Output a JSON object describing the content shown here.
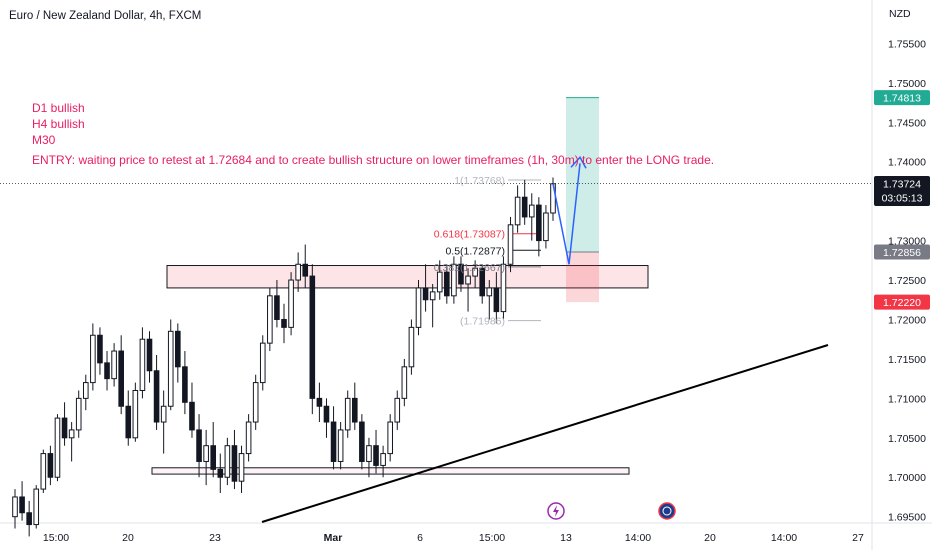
{
  "chart_data": {
    "type": "candlestick",
    "title": "Euro / New Zealand Dollar, 4h, FXCM",
    "currency": "NZD",
    "y_axis": {
      "min": 1.6942,
      "max": 1.7605,
      "ticks": [
        "1.75500",
        "1.75000",
        "1.74500",
        "1.74000",
        "1.73500",
        "1.73000",
        "1.72500",
        "1.72000",
        "1.71500",
        "1.71000",
        "1.70500",
        "1.70000",
        "1.69500"
      ]
    },
    "x_axis": {
      "ticks": [
        "15:00",
        "20",
        "23",
        "Mar",
        "6",
        "15:00",
        "13",
        "14:00",
        "20",
        "14:00",
        "27"
      ],
      "bold_ticks": [
        "Mar"
      ]
    },
    "price_labels": [
      {
        "value": 1.74813,
        "text": "1.74813",
        "color": "#22ab94"
      },
      {
        "value": 1.73724,
        "text": "1.73724",
        "sub": "03:05:13",
        "color": "#131722"
      },
      {
        "value": 1.72856,
        "text": "1.72856",
        "color": "#787b86"
      },
      {
        "value": 1.7222,
        "text": "1.72220",
        "color": "#f23645"
      }
    ],
    "current_price": 1.73724,
    "annotation_lines": [
      "D1 bullish",
      "H4 bullish",
      "M30",
      "ENTRY: waiting price to retest at 1.72684 and to create bullish structure on lower timeframes (1h, 30m) to enter the LONG trade."
    ],
    "annotation_color": "#e91e63",
    "fib_levels": [
      {
        "ratio": "1",
        "value": 1.73768,
        "text": "1(1.73768)",
        "color": "#b2b5be"
      },
      {
        "ratio": "0.618",
        "value": 1.73087,
        "text": "0.618(1.73087)",
        "color": "#f23645"
      },
      {
        "ratio": "0.5",
        "value": 1.72877,
        "text": "0.5(1.72877)",
        "color": "#131722"
      },
      {
        "ratio": "0.382",
        "value": 1.72667,
        "text": "0.382(1.72667)",
        "color": "#787b86"
      },
      {
        "ratio": "0",
        "value": 1.71986,
        "text": "(1.71986)",
        "color": "#b2b5be"
      }
    ],
    "zones": [
      {
        "name": "resistance-support-zone",
        "y_top": 1.72684,
        "y_bottom": 1.724
      },
      {
        "name": "demand-zone",
        "y_top": 1.7012,
        "y_bottom": 1.7004
      }
    ],
    "long_position": {
      "entry": 1.72856,
      "target": 1.74813,
      "stop": 1.7222
    },
    "candles": [
      [
        1.695,
        1.6985,
        1.6935,
        1.6975
      ],
      [
        1.6975,
        1.6995,
        1.6945,
        1.6955
      ],
      [
        1.6955,
        1.697,
        1.6925,
        1.694
      ],
      [
        1.694,
        1.699,
        1.6935,
        1.6985
      ],
      [
        1.6985,
        1.7035,
        1.698,
        1.703
      ],
      [
        1.703,
        1.704,
        1.699,
        1.7
      ],
      [
        1.7,
        1.708,
        1.6995,
        1.7075
      ],
      [
        1.7075,
        1.7095,
        1.704,
        1.705
      ],
      [
        1.705,
        1.707,
        1.702,
        1.706
      ],
      [
        1.706,
        1.711,
        1.705,
        1.71
      ],
      [
        1.71,
        1.713,
        1.7085,
        1.712
      ],
      [
        1.712,
        1.7195,
        1.711,
        1.718
      ],
      [
        1.718,
        1.719,
        1.713,
        1.7145
      ],
      [
        1.7145,
        1.716,
        1.711,
        1.7125
      ],
      [
        1.7125,
        1.717,
        1.7115,
        1.716
      ],
      [
        1.716,
        1.718,
        1.708,
        1.709
      ],
      [
        1.709,
        1.711,
        1.704,
        1.705
      ],
      [
        1.705,
        1.712,
        1.7045,
        1.711
      ],
      [
        1.711,
        1.719,
        1.71,
        1.7175
      ],
      [
        1.7175,
        1.7185,
        1.712,
        1.7135
      ],
      [
        1.7135,
        1.7155,
        1.706,
        1.707
      ],
      [
        1.707,
        1.711,
        1.703,
        1.709
      ],
      [
        1.709,
        1.72,
        1.7085,
        1.7185
      ],
      [
        1.7185,
        1.7195,
        1.712,
        1.714
      ],
      [
        1.714,
        1.716,
        1.708,
        1.7095
      ],
      [
        1.7095,
        1.712,
        1.705,
        1.706
      ],
      [
        1.706,
        1.708,
        1.7,
        1.702
      ],
      [
        1.702,
        1.706,
        1.699,
        1.704
      ],
      [
        1.704,
        1.707,
        1.7,
        1.701
      ],
      [
        1.701,
        1.703,
        1.698,
        1.7
      ],
      [
        1.7,
        1.705,
        1.699,
        1.704
      ],
      [
        1.704,
        1.706,
        1.6985,
        1.6995
      ],
      [
        1.6995,
        1.704,
        1.698,
        1.703
      ],
      [
        1.703,
        1.708,
        1.702,
        1.707
      ],
      [
        1.707,
        1.713,
        1.706,
        1.712
      ],
      [
        1.712,
        1.718,
        1.711,
        1.717
      ],
      [
        1.717,
        1.724,
        1.716,
        1.723
      ],
      [
        1.723,
        1.725,
        1.719,
        1.72
      ],
      [
        1.72,
        1.722,
        1.717,
        1.719
      ],
      [
        1.719,
        1.726,
        1.718,
        1.725
      ],
      [
        1.725,
        1.7285,
        1.7235,
        1.727
      ],
      [
        1.727,
        1.7295,
        1.724,
        1.7255
      ],
      [
        1.7255,
        1.727,
        1.708,
        1.71
      ],
      [
        1.71,
        1.712,
        1.707,
        1.709
      ],
      [
        1.709,
        1.71,
        1.705,
        1.707
      ],
      [
        1.707,
        1.709,
        1.701,
        1.702
      ],
      [
        1.702,
        1.707,
        1.701,
        1.706
      ],
      [
        1.706,
        1.711,
        1.705,
        1.71
      ],
      [
        1.71,
        1.712,
        1.706,
        1.707
      ],
      [
        1.707,
        1.708,
        1.701,
        1.702
      ],
      [
        1.702,
        1.705,
        1.7,
        1.704
      ],
      [
        1.704,
        1.706,
        1.7005,
        1.7015
      ],
      [
        1.7015,
        1.704,
        1.7,
        1.703
      ],
      [
        1.703,
        1.708,
        1.702,
        1.707
      ],
      [
        1.707,
        1.711,
        1.706,
        1.71
      ],
      [
        1.71,
        1.715,
        1.709,
        1.714
      ],
      [
        1.714,
        1.72,
        1.713,
        1.719
      ],
      [
        1.719,
        1.725,
        1.718,
        1.724
      ],
      [
        1.724,
        1.727,
        1.721,
        1.7225
      ],
      [
        1.7225,
        1.7245,
        1.719,
        1.7235
      ],
      [
        1.7235,
        1.7275,
        1.7225,
        1.726
      ],
      [
        1.726,
        1.727,
        1.722,
        1.723
      ],
      [
        1.723,
        1.728,
        1.722,
        1.727
      ],
      [
        1.727,
        1.728,
        1.7235,
        1.7245
      ],
      [
        1.7245,
        1.7265,
        1.721,
        1.7255
      ],
      [
        1.7255,
        1.7275,
        1.724,
        1.7265
      ],
      [
        1.7265,
        1.727,
        1.722,
        1.723
      ],
      [
        1.723,
        1.725,
        1.72,
        1.724
      ],
      [
        1.724,
        1.726,
        1.7195,
        1.721
      ],
      [
        1.721,
        1.728,
        1.72,
        1.727
      ],
      [
        1.727,
        1.733,
        1.726,
        1.732
      ],
      [
        1.732,
        1.737,
        1.731,
        1.7355
      ],
      [
        1.7355,
        1.7377,
        1.732,
        1.733
      ],
      [
        1.733,
        1.736,
        1.73,
        1.7345
      ],
      [
        1.7345,
        1.7355,
        1.728,
        1.73
      ],
      [
        1.73,
        1.7345,
        1.729,
        1.7335
      ],
      [
        1.7335,
        1.738,
        1.7325,
        1.7372
      ]
    ]
  }
}
